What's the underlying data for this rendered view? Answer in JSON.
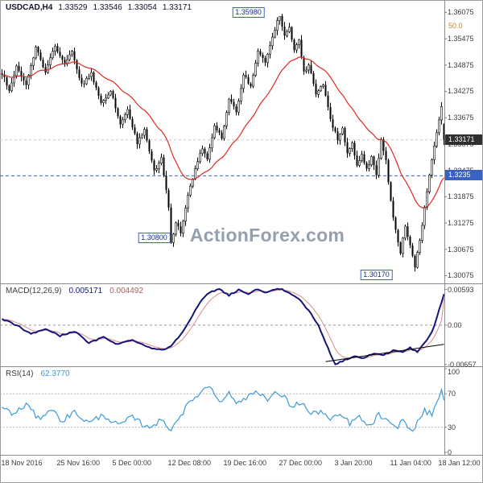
{
  "app": {
    "watermark": "ActionForex.com"
  },
  "layout_colors": {
    "background": "#ffffff",
    "border": "#9a9a9a",
    "candle_up": "#ffffff",
    "candle_down": "#000000",
    "candle_stroke": "#000000",
    "ma": "#dd2a20",
    "macd": "#14147a",
    "macd_signal": "#d98c8c",
    "rsi": "#3b9ad9",
    "tag_current_bg": "#2f2f2f",
    "tag_level_bg": "#3a62c4",
    "annotation_border": "#3a62c4",
    "watermark": "#95a0ae",
    "fib_label": "#c08030",
    "trendline": "#000000"
  },
  "header": {
    "symbol": "USDCAD,H4",
    "open": "1.33529",
    "high": "1.33546",
    "low": "1.33054",
    "close": "1.33171"
  },
  "indicators": {
    "macd": {
      "label": "MACD(12,26,9)",
      "value_main": "0.005171",
      "value_signal": "0.004492"
    },
    "rsi": {
      "label": "RSI(14)",
      "value": "62.3770"
    }
  },
  "chart_data": [
    {
      "type": "candlestick",
      "symbol": "USDCAD",
      "timeframe": "H4",
      "bars": 184,
      "ylim": [
        1.299,
        1.3632
      ],
      "y_ticks": [
        "1.36075",
        "1.35475",
        "1.34875",
        "1.34275",
        "1.33675",
        "1.33075",
        "1.32475",
        "1.31875",
        "1.31275",
        "1.30675",
        "1.30075"
      ],
      "price_anchors": [
        [
          0,
          1.3468
        ],
        [
          3,
          1.3432
        ],
        [
          6,
          1.3482
        ],
        [
          10,
          1.3445
        ],
        [
          14,
          1.3528
        ],
        [
          18,
          1.3472
        ],
        [
          22,
          1.3532
        ],
        [
          26,
          1.3488
        ],
        [
          29,
          1.3518
        ],
        [
          33,
          1.3442
        ],
        [
          37,
          1.3468
        ],
        [
          41,
          1.3402
        ],
        [
          45,
          1.3428
        ],
        [
          49,
          1.3355
        ],
        [
          52,
          1.3385
        ],
        [
          56,
          1.331
        ],
        [
          59,
          1.334
        ],
        [
          63,
          1.3245
        ],
        [
          66,
          1.3275
        ],
        [
          69,
          1.316
        ],
        [
          70,
          1.3082
        ],
        [
          72,
          1.313
        ],
        [
          74,
          1.3105
        ],
        [
          77,
          1.319
        ],
        [
          80,
          1.325
        ],
        [
          83,
          1.33
        ],
        [
          85,
          1.327
        ],
        [
          88,
          1.335
        ],
        [
          91,
          1.332
        ],
        [
          94,
          1.341
        ],
        [
          97,
          1.338
        ],
        [
          100,
          1.3465
        ],
        [
          103,
          1.344
        ],
        [
          106,
          1.352
        ],
        [
          109,
          1.349
        ],
        [
          112,
          1.355
        ],
        [
          114,
          1.3585
        ],
        [
          115,
          1.3598
        ],
        [
          117,
          1.3555
        ],
        [
          119,
          1.3575
        ],
        [
          121,
          1.352
        ],
        [
          123,
          1.3545
        ],
        [
          125,
          1.347
        ],
        [
          127,
          1.349
        ],
        [
          130,
          1.342
        ],
        [
          133,
          1.3445
        ],
        [
          136,
          1.336
        ],
        [
          139,
          1.332
        ],
        [
          141,
          1.334
        ],
        [
          143,
          1.329
        ],
        [
          145,
          1.331
        ],
        [
          147,
          1.3255
        ],
        [
          149,
          1.3285
        ],
        [
          151,
          1.3248
        ],
        [
          153,
          1.3278
        ],
        [
          155,
          1.324
        ],
        [
          157,
          1.3315
        ],
        [
          159,
          1.327
        ],
        [
          161,
          1.3175
        ],
        [
          163,
          1.311
        ],
        [
          165,
          1.306
        ],
        [
          167,
          1.312
        ],
        [
          169,
          1.3075
        ],
        [
          171,
          1.3025
        ],
        [
          173,
          1.309
        ],
        [
          175,
          1.316
        ],
        [
          177,
          1.324
        ],
        [
          179,
          1.33
        ],
        [
          181,
          1.336
        ],
        [
          182,
          1.339
        ],
        [
          184,
          1.3317
        ]
      ],
      "forced_points": {
        "high_idx": 115,
        "high": 1.3598,
        "low1_idx": 70,
        "low1": 1.308,
        "low2_idx": 171,
        "low2": 1.3017
      },
      "last_bar": {
        "open": 1.33529,
        "high": 1.33546,
        "low": 1.33054,
        "close": 1.33171
      },
      "ma": {
        "kind": "ema",
        "period": 26
      },
      "levels": [
        {
          "label": "1.3235",
          "price": 1.3235,
          "style": "dashed",
          "tag": "blue"
        },
        {
          "label": "1.33171",
          "price": 1.33171,
          "style": "dashed",
          "tag": "dark"
        }
      ],
      "fib_label": {
        "text": "50.0",
        "y": 27
      },
      "annotations": [
        {
          "text": "1.35980",
          "i": 102,
          "price": 1.3598,
          "dy": -12
        },
        {
          "text": "1.30800",
          "i": 63,
          "price": 1.308,
          "dy": -14
        },
        {
          "text": "1.30170",
          "i": 155,
          "price": 1.3017,
          "dy": -2
        }
      ]
    },
    {
      "type": "line",
      "name": "MACD(12,26,9)",
      "ylim": [
        -0.0066,
        0.0067
      ],
      "ticks": [
        {
          "label": "0.00593",
          "v": 0.00593
        },
        {
          "label": "0.00",
          "v": 0
        },
        {
          "label": "-0.00657",
          "v": -0.00657
        }
      ],
      "anchors": [
        [
          0,
          0.001
        ],
        [
          6,
          0
        ],
        [
          12,
          -0.0015
        ],
        [
          18,
          -0.0006
        ],
        [
          24,
          -0.0018
        ],
        [
          30,
          -0.001
        ],
        [
          36,
          -0.003
        ],
        [
          42,
          -0.002
        ],
        [
          48,
          -0.0032
        ],
        [
          54,
          -0.0024
        ],
        [
          60,
          -0.0036
        ],
        [
          66,
          -0.0042
        ],
        [
          70,
          -0.0035
        ],
        [
          74,
          -0.0015
        ],
        [
          78,
          0.001
        ],
        [
          82,
          0.0038
        ],
        [
          86,
          0.0055
        ],
        [
          90,
          0.006
        ],
        [
          94,
          0.005
        ],
        [
          98,
          0.0059
        ],
        [
          102,
          0.0052
        ],
        [
          106,
          0.006
        ],
        [
          110,
          0.0054
        ],
        [
          114,
          0.0061
        ],
        [
          117,
          0.0058
        ],
        [
          120,
          0.005
        ],
        [
          124,
          0.004
        ],
        [
          128,
          0.0018
        ],
        [
          131,
          0
        ],
        [
          134,
          -0.003
        ],
        [
          138,
          -0.0065
        ],
        [
          142,
          -0.0058
        ],
        [
          146,
          -0.0052
        ],
        [
          150,
          -0.0055
        ],
        [
          154,
          -0.0047
        ],
        [
          158,
          -0.005
        ],
        [
          162,
          -0.0042
        ],
        [
          166,
          -0.0045
        ],
        [
          169,
          -0.0038
        ],
        [
          172,
          -0.0045
        ],
        [
          175,
          -0.003
        ],
        [
          178,
          -0.0012
        ],
        [
          180,
          0.0012
        ],
        [
          182,
          0.0038
        ],
        [
          184,
          0.0052
        ]
      ],
      "current": {
        "main": 0.005171,
        "signal": 0.004492
      },
      "trendline": {
        "i1": 134,
        "v1": -0.0061,
        "i2": 183,
        "v2": -0.0032
      }
    },
    {
      "type": "line",
      "name": "RSI(14)",
      "ylim": [
        0,
        100
      ],
      "ticks": [
        {
          "label": "100",
          "v": 100
        },
        {
          "label": "70",
          "v": 70
        },
        {
          "label": "30",
          "v": 30
        },
        {
          "label": "0",
          "v": 0
        }
      ],
      "hlines": [
        70,
        30
      ],
      "anchors": [
        [
          0,
          55
        ],
        [
          5,
          45
        ],
        [
          10,
          58
        ],
        [
          15,
          40
        ],
        [
          20,
          52
        ],
        [
          25,
          38
        ],
        [
          30,
          48
        ],
        [
          36,
          35
        ],
        [
          42,
          45
        ],
        [
          48,
          32
        ],
        [
          54,
          42
        ],
        [
          60,
          30
        ],
        [
          66,
          38
        ],
        [
          70,
          28
        ],
        [
          74,
          45
        ],
        [
          78,
          60
        ],
        [
          82,
          72
        ],
        [
          86,
          80
        ],
        [
          90,
          62
        ],
        [
          94,
          70
        ],
        [
          98,
          58
        ],
        [
          102,
          68
        ],
        [
          106,
          74
        ],
        [
          110,
          62
        ],
        [
          114,
          72
        ],
        [
          117,
          65
        ],
        [
          120,
          55
        ],
        [
          124,
          60
        ],
        [
          128,
          45
        ],
        [
          132,
          50
        ],
        [
          136,
          38
        ],
        [
          140,
          45
        ],
        [
          144,
          35
        ],
        [
          148,
          42
        ],
        [
          152,
          30
        ],
        [
          156,
          45
        ],
        [
          160,
          35
        ],
        [
          163,
          28
        ],
        [
          166,
          40
        ],
        [
          169,
          25
        ],
        [
          172,
          35
        ],
        [
          175,
          50
        ],
        [
          178,
          45
        ],
        [
          181,
          68
        ],
        [
          183,
          76
        ],
        [
          184,
          62.38
        ]
      ],
      "current": 62.377
    }
  ],
  "x_axis": {
    "labels": [
      {
        "text": "18 Nov 2016",
        "i": 0
      },
      {
        "text": "25 Nov 16:00",
        "i": 23
      },
      {
        "text": "5 Dec 00:00",
        "i": 46
      },
      {
        "text": "12 Dec 08:00",
        "i": 69
      },
      {
        "text": "19 Dec 16:00",
        "i": 92
      },
      {
        "text": "27 Dec 00:00",
        "i": 115
      },
      {
        "text": "3 Jan 20:00",
        "i": 138
      },
      {
        "text": "11 Jan 04:00",
        "i": 161
      },
      {
        "text": "18 Jan 12:00",
        "i": 181
      }
    ]
  }
}
